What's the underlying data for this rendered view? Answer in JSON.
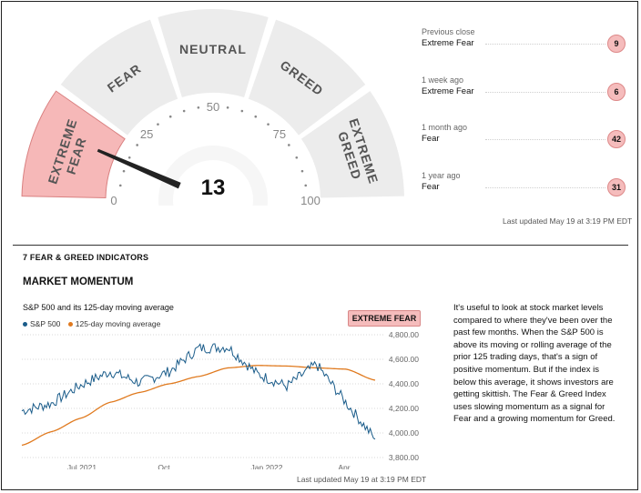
{
  "gauge": {
    "value": 13,
    "zones": [
      "EXTREME FEAR",
      "FEAR",
      "NEUTRAL",
      "GREED",
      "EXTREME GREED"
    ],
    "active_zone": "EXTREME FEAR",
    "scale_labels": [
      "0",
      "25",
      "50",
      "75",
      "100"
    ],
    "colors": {
      "track": "#ececec",
      "active": "#f6b8b8",
      "active_border": "#d98080",
      "needle": "#222222"
    }
  },
  "history": [
    {
      "when": "Previous close",
      "rating": "Extreme Fear",
      "value": "9"
    },
    {
      "when": "1 week ago",
      "rating": "Extreme Fear",
      "value": "6"
    },
    {
      "when": "1 month ago",
      "rating": "Fear",
      "value": "42"
    },
    {
      "when": "1 year ago",
      "rating": "Fear",
      "value": "31"
    }
  ],
  "last_updated": "Last updated May 19 at 3:19 PM EDT",
  "section_title": "7 FEAR & GREED INDICATORS",
  "indicator_title": "MARKET MOMENTUM",
  "indicator_rating": "EXTREME FEAR",
  "description": "It's useful to look at stock market levels compared to where they've been over the past few months. When the S&P 500 is above its moving or rolling average of the prior 125 trading days, that's a sign of positive momentum. But if the index is below this average, it shows investors are getting skittish. The Fear & Greed Index uses slowing momentum as a signal for Fear and a growing momentum for Greed.",
  "chart_data": {
    "type": "line",
    "title": "S&P 500 and its 125-day moving average",
    "x_ticks": [
      "Jul 2021",
      "Oct",
      "Jan 2022",
      "Apr"
    ],
    "y_ticks": [
      "4,800.00",
      "4,600.00",
      "4,400.00",
      "4,200.00",
      "4,000.00",
      "3,800.00"
    ],
    "ylim": [
      3800,
      4800
    ],
    "x": [
      "2021-05",
      "2021-06",
      "2021-07",
      "2021-08",
      "2021-09",
      "2021-10",
      "2021-11",
      "2021-12",
      "2022-01",
      "2022-02",
      "2022-03",
      "2022-04",
      "2022-05"
    ],
    "series": [
      {
        "name": "S&P 500",
        "color": "#1a5c8a",
        "values": [
          4180,
          4240,
          4390,
          4500,
          4410,
          4500,
          4690,
          4700,
          4480,
          4380,
          4560,
          4250,
          3950
        ]
      },
      {
        "name": "125-day moving average",
        "color": "#e07a1f",
        "values": [
          3900,
          4010,
          4120,
          4250,
          4330,
          4400,
          4460,
          4530,
          4550,
          4545,
          4530,
          4520,
          4430
        ]
      }
    ],
    "grid": "horizontal dotted",
    "legend": "top-left"
  }
}
